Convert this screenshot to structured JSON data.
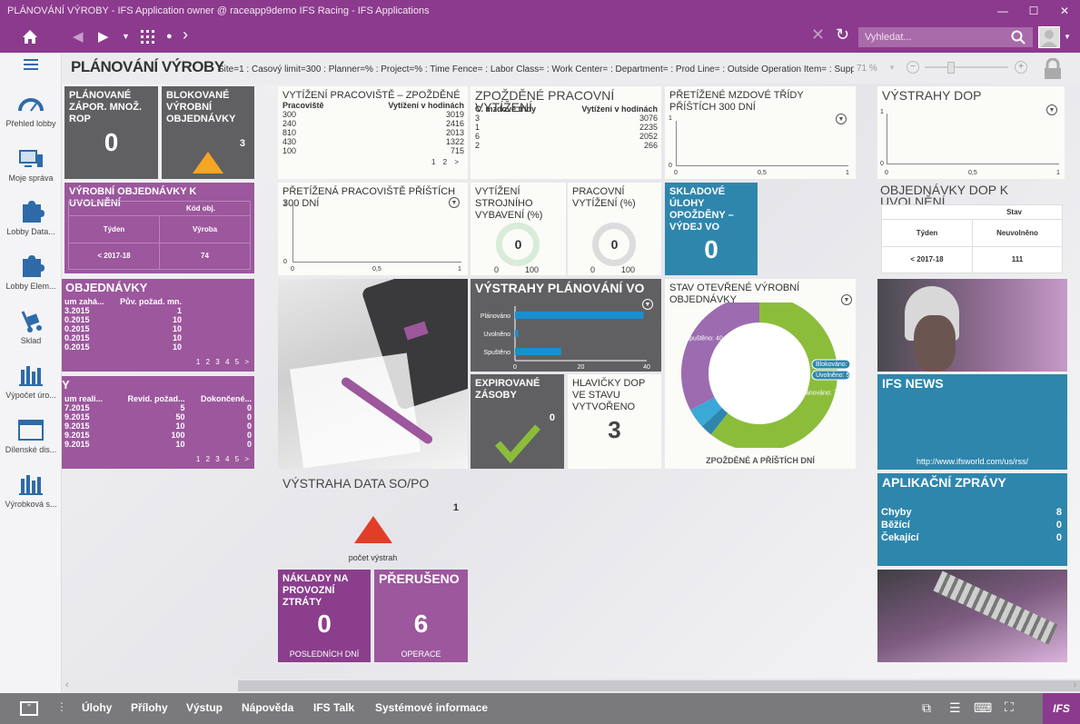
{
  "window": {
    "title": "PLÁNOVÁNÍ VÝROBY - IFS Application owner @ raceapp9demo IFS Racing - IFS Applications"
  },
  "toolbar": {
    "search_placeholder": "Vyhledat..."
  },
  "sidebar": {
    "items": [
      {
        "label": "Přehled lobby",
        "icon": "speedometer-icon"
      },
      {
        "label": "Moje správa",
        "icon": "monitor-icon"
      },
      {
        "label": "Lobby Data...",
        "icon": "puzzle-icon"
      },
      {
        "label": "Lobby Elem...",
        "icon": "puzzle-icon"
      },
      {
        "label": "Sklad",
        "icon": "hand-truck-icon"
      },
      {
        "label": "Výpočet úro...",
        "icon": "bar-chart-icon"
      },
      {
        "label": "Dílenské dis...",
        "icon": "window-icon"
      },
      {
        "label": "Výrobková s...",
        "icon": "bar-chart-icon"
      }
    ]
  },
  "page": {
    "title": "PLÁNOVÁNÍ VÝROBY",
    "params": "Site=1 : Časový limit=300 : Planner=% : Project=% : Time Fence= : Labor Class= : Work Center= : Department= : Prod Line= : Outside Operation Item= : Supplier=",
    "zoom": "71 %"
  },
  "tiles": {
    "planned_neg": {
      "title": "PLÁNOVANÉ ZÁPOR. MNOŽ. ROP",
      "value": "0"
    },
    "blocked": {
      "title": "BLOKOVANÉ VÝROBNÍ OBJEDNÁVKY",
      "value": "3"
    },
    "release": {
      "title": "VÝROBNÍ OBJEDNÁVKY K UVOLNĚNÍ",
      "header": "Kód obj.",
      "col1": "Týden",
      "col2": "Výroba",
      "row_week": "< 2017-18",
      "row_value": "74"
    },
    "orders": {
      "title": "OBJEDNÁVKY",
      "h1": "um zahá...",
      "h2": "Pův. požad. mn.",
      "rows": [
        [
          "3.2015",
          "1"
        ],
        [
          "0.2015",
          "10"
        ],
        [
          "0.2015",
          "10"
        ],
        [
          "0.2015",
          "10"
        ],
        [
          "0.2015",
          "10"
        ]
      ],
      "pages": [
        "1",
        "2",
        "3",
        "4",
        "5",
        ">"
      ]
    },
    "orders2": {
      "title": "Y",
      "h1": "um reali...",
      "h2": "Revid. požad...",
      "h3": "Dokončené...",
      "rows": [
        [
          "7.2015",
          "5",
          "0"
        ],
        [
          "9.2015",
          "50",
          "0"
        ],
        [
          "9.2015",
          "10",
          "0"
        ],
        [
          "9.2015",
          "100",
          "0"
        ],
        [
          "9.2015",
          "10",
          "0"
        ]
      ],
      "pages": [
        "1",
        "2",
        "3",
        "4",
        "5",
        ">"
      ]
    },
    "wc_delay": {
      "title": "VYTÍŽENÍ PRACOVIŠTĚ – ZPOŽDĚNÉ",
      "h1": "Pracoviště",
      "h2": "Vytížení v hodinách",
      "rows": [
        [
          "300",
          "3019"
        ],
        [
          "240",
          "2416"
        ],
        [
          "810",
          "2013"
        ],
        [
          "430",
          "1322"
        ],
        [
          "100",
          "715"
        ]
      ],
      "pages": [
        "1",
        "2",
        ">"
      ]
    },
    "late_workload": {
      "title": "ZPOŽDĚNÉ PRACOVNÍ VYTÍŽENÍ",
      "h1": "C. mzdové třídy",
      "h2": "Vytížení v hodinách",
      "rows": [
        [
          "3",
          "3076"
        ],
        [
          "1",
          "2235"
        ],
        [
          "6",
          "2052"
        ],
        [
          "2",
          "266"
        ]
      ]
    },
    "overloaded_labor": {
      "title": "PŘETÍŽENÉ MZDOVÉ TŘÍDY PŘÍŠTÍCH 300 DNÍ",
      "y_top": "1",
      "y_bottom": "0",
      "x_ticks": [
        "0",
        "0,5",
        "1"
      ]
    },
    "dop_alerts": {
      "title": "VÝSTRAHY DOP",
      "y_top": "1",
      "y_bottom": "0",
      "x_ticks": [
        "0",
        "0,5",
        "1"
      ]
    },
    "overloaded_wc": {
      "title": "PŘETÍŽENÁ PRACOVIŠTĚ PŘÍŠTÍCH 300 DNÍ",
      "y_top": "1",
      "y_bottom": "0",
      "x_ticks": [
        "0",
        "0,5",
        "1"
      ]
    },
    "machine_util": {
      "title": "VYTÍŽENÍ STROJNÍHO VYBAVENÍ (%)",
      "value": "0",
      "min": "0",
      "max": "100"
    },
    "work_util": {
      "title": "PRACOVNÍ VYTÍŽENÍ (%)",
      "value": "0",
      "min": "0",
      "max": "100"
    },
    "stock_tasks": {
      "title": "SKLADOVÉ ÚLOHY OPOŽDĚNY – VÝDEJ VO",
      "value": "0"
    },
    "dop_release": {
      "title": "OBJEDNÁVKY DOP K UVOLNĚNÍ",
      "header": "Stav",
      "col1": "Týden",
      "col2": "Neuvolněno",
      "row_week": "< 2017-18",
      "row_value": "111"
    },
    "planning_alerts": {
      "title": "VÝSTRAHY PLÁNOVÁNÍ VO",
      "x_ticks": [
        "0",
        "20",
        "40"
      ]
    },
    "expired": {
      "title": "EXPIROVANÉ ZÁSOBY",
      "value": "0"
    },
    "dop_headers": {
      "title": "HLAVIČKY DOP VE STAVU VYTVOŘENO",
      "value": "3"
    },
    "open_orders": {
      "title": "STAV OTEVŘENÉ VÝROBNÍ OBJEDNÁVKY",
      "subtitle": "ZPOŽDĚNÉ A PŘÍŠTÍCH DNÍ"
    },
    "date_alert": {
      "title": "VÝSTRAHA DATA SO/PO",
      "value": "1",
      "caption": "počet výstrah"
    },
    "costs": {
      "title": "NÁKLADY NA PROVOZNÍ ZTRÁTY",
      "value": "0",
      "caption": "POSLEDNÍCH  DNÍ"
    },
    "interrupted": {
      "title": "PŘERUŠENO",
      "value": "6",
      "caption": "OPERACE"
    },
    "news": {
      "title": "IFS NEWS",
      "url": "http://www.ifsworld.com/us/rss/"
    },
    "app_messages": {
      "title": "APLIKAČNÍ ZPRÁVY",
      "rows": [
        [
          "Chyby",
          "8"
        ],
        [
          "Běžící",
          "0"
        ],
        [
          "Čekající",
          "0"
        ]
      ]
    }
  },
  "chart_data": [
    {
      "type": "bar",
      "title": "VÝSTRAHY PLÁNOVÁNÍ VO",
      "categories": [
        "Plánováno",
        "Uvolněno",
        "Spuštěno"
      ],
      "values": [
        39,
        1,
        14
      ],
      "xlim": [
        0,
        40
      ],
      "color": "#1a8fd0"
    },
    {
      "type": "pie",
      "title": "STAV OTEVŘENÉ VÝROBNÍ OBJEDNÁVKY",
      "labels": [
        "Plánováno",
        "Blokováno",
        "Uvolněno",
        "Spuštěno"
      ],
      "values": [
        74,
        3,
        5,
        40
      ],
      "colors": [
        "#8bbd3b",
        "#2e86ad",
        "#3aa9d8",
        "#9c6bb0"
      ],
      "slice_labels": [
        "Plánováno: 74",
        "Blokováno: 3",
        "Uvolněno: 5",
        "Spuštěno: 40"
      ]
    }
  ],
  "statusbar": {
    "items": [
      "Úlohy",
      "Přílohy",
      "Výstup",
      "Nápověda",
      "IFS Talk",
      "Systémové informace"
    ]
  }
}
